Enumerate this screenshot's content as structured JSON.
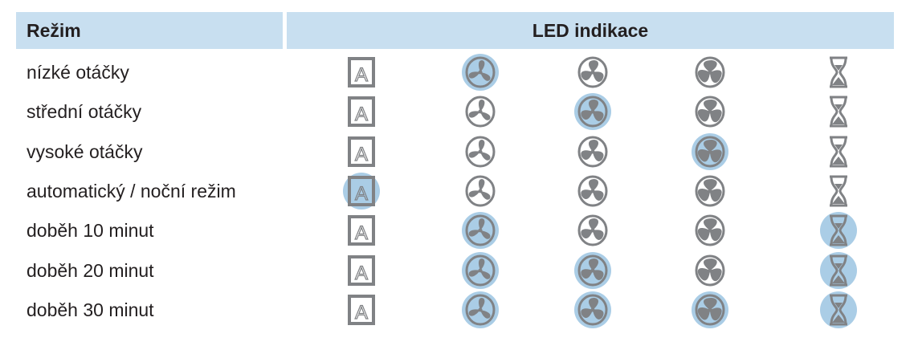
{
  "header": {
    "mode": "Režim",
    "led": "LED indikace"
  },
  "columns": [
    "auto-icon",
    "fan-low-icon",
    "fan-medium-icon",
    "fan-high-icon",
    "hourglass-icon"
  ],
  "highlight_color": "#aacde6",
  "icon_color": "#808285",
  "rows": [
    {
      "label": "nízké otáčky",
      "lit": [
        false,
        true,
        false,
        false,
        false
      ]
    },
    {
      "label": "střední otáčky",
      "lit": [
        false,
        false,
        true,
        false,
        false
      ]
    },
    {
      "label": "vysoké otáčky",
      "lit": [
        false,
        false,
        false,
        true,
        false
      ]
    },
    {
      "label": "automatický / noční režim",
      "lit": [
        true,
        false,
        false,
        false,
        false
      ]
    },
    {
      "label": "doběh 10 minut",
      "lit": [
        false,
        true,
        false,
        false,
        true
      ]
    },
    {
      "label": "doběh 20 minut",
      "lit": [
        false,
        true,
        true,
        false,
        true
      ]
    },
    {
      "label": "doběh 30 minut",
      "lit": [
        false,
        true,
        true,
        true,
        true
      ]
    }
  ]
}
